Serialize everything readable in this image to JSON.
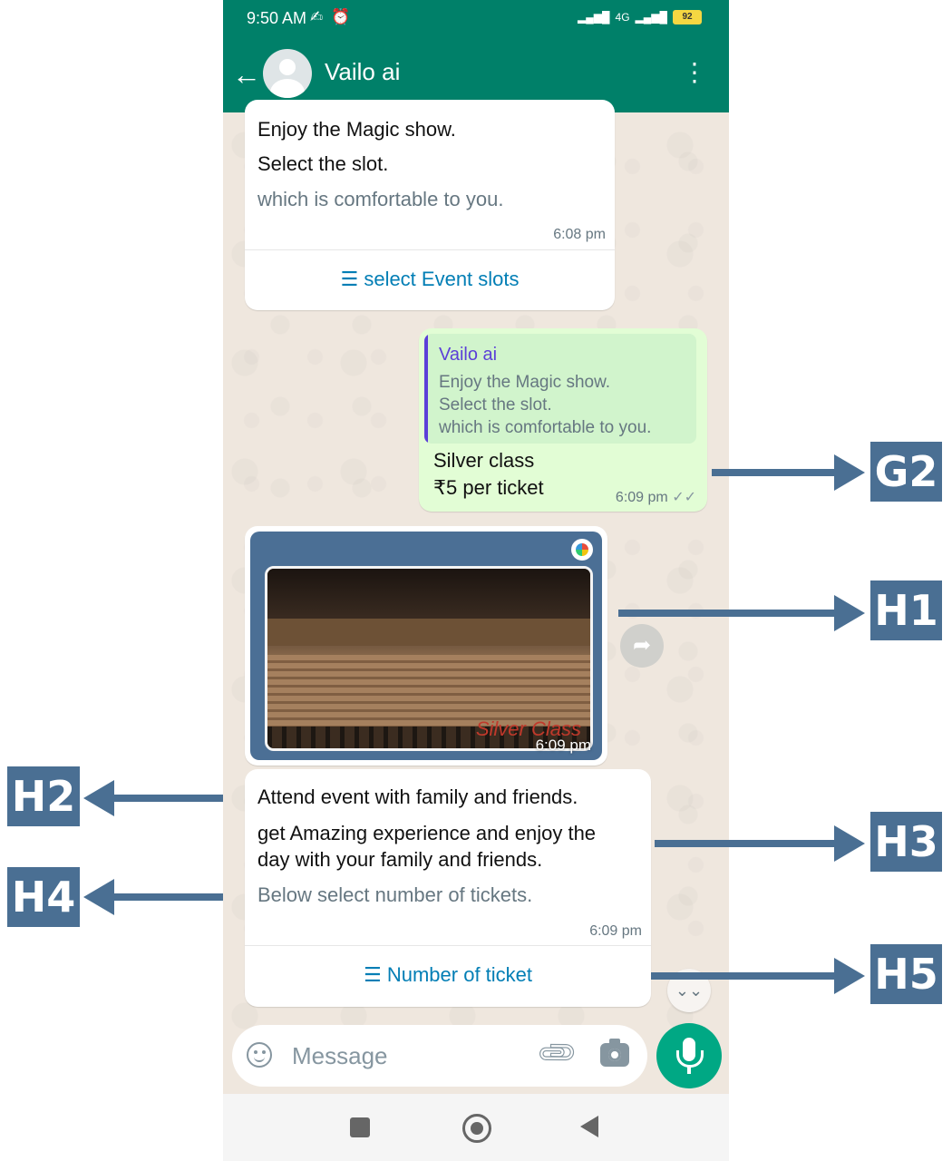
{
  "status_bar": {
    "time": "9:50 AM",
    "left_icons": "mute-icon alarm-icon",
    "network": "4G",
    "battery": "92"
  },
  "app_bar": {
    "contact_name": "Vailo ai"
  },
  "messages": {
    "msg1": {
      "title": "Enjoy the Magic show.",
      "line1": "Select the slot.",
      "footer": "which is comfortable to you.",
      "time": "6:08 pm",
      "button_label": "select Event slots"
    },
    "reply": {
      "quote_name": "Vailo ai",
      "quote_lines": [
        "Enjoy the Magic show.",
        "Select the slot.",
        "which is comfortable to you."
      ],
      "line1": "Silver class",
      "line2": "₹5 per ticket",
      "time": "6:09 pm",
      "ticks": "✓✓"
    },
    "image_msg": {
      "caption": "Silver Class",
      "time": "6:09 pm"
    },
    "msg2": {
      "title": "Attend event with family and friends.",
      "line1": "get Amazing experience and enjoy the",
      "line2": "day with your family and friends.",
      "footer": "Below select number of tickets.",
      "time": "6:09 pm",
      "button_label": "Number of ticket"
    }
  },
  "composer": {
    "placeholder": "Message"
  },
  "annotations": {
    "g2": "G2",
    "h1": "H1",
    "h2": "H2",
    "h3": "H3",
    "h4": "H4",
    "h5": "H5"
  },
  "colors": {
    "header": "#008069",
    "accent_link": "#027eb5",
    "outgoing_bubble": "#e2fdd5",
    "label": "#4a6f93",
    "mic": "#00a884"
  }
}
